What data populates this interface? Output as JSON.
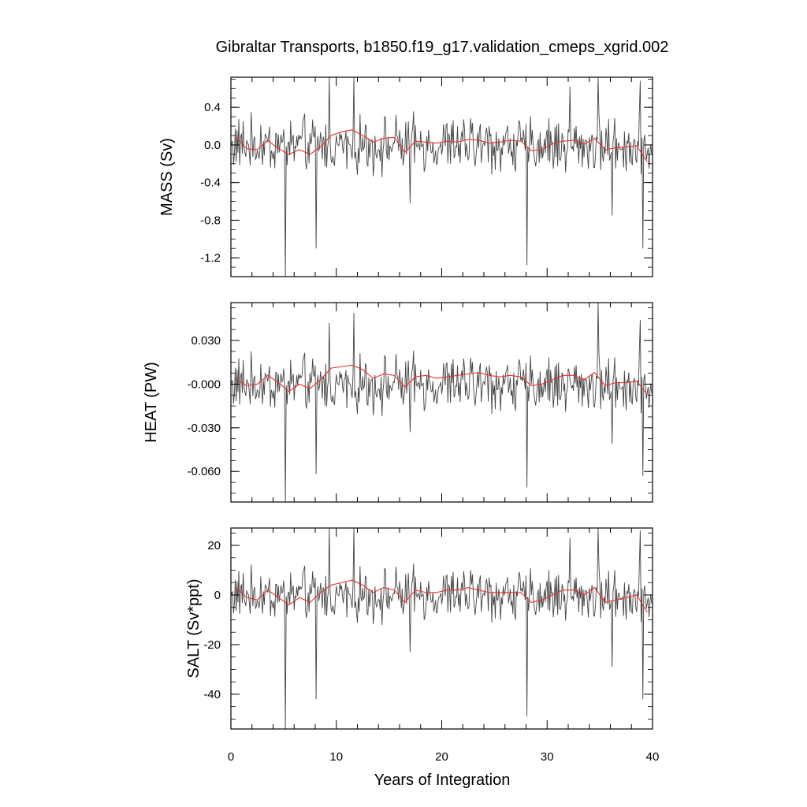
{
  "chart_data": {
    "type": "line",
    "title": "Gibraltar Transports, b1850.f19_g17.validation_cmeps_xgrid.002",
    "xlabel": "Years of Integration",
    "xlim": [
      0,
      40
    ],
    "xticks": [
      0,
      10,
      20,
      30,
      40
    ],
    "x_tick_labels": [
      "0",
      "10",
      "20",
      "30",
      "40"
    ],
    "grid": false,
    "legend": "none",
    "colors": {
      "monthly": "#444444",
      "annual_mean": "#e8312f",
      "axes": "#000000"
    },
    "panels": [
      {
        "name": "mass",
        "ylabel": "MASS (Sv)",
        "ylim": [
          -1.4,
          0.72
        ],
        "yticks": [
          0.4,
          0.0,
          -0.4,
          -0.8,
          -1.2
        ],
        "y_tick_labels": [
          "0.4",
          "0.0",
          "-0.4",
          "-0.8",
          "-1.2"
        ],
        "series": [
          {
            "kind": "monthly",
            "base": 0.0,
            "amplitude": 0.17,
            "spikes": [
              {
                "year": 5.15,
                "value": -1.4
              },
              {
                "year": 8.05,
                "value": -1.1
              },
              {
                "year": 28.1,
                "value": -1.28
              },
              {
                "year": 39.1,
                "value": -1.1
              },
              {
                "year": 9.35,
                "value": 0.72
              },
              {
                "year": 11.7,
                "value": 0.72
              },
              {
                "year": 34.8,
                "value": 0.72
              },
              {
                "year": 38.8,
                "value": 0.68
              },
              {
                "year": 32.2,
                "value": 0.62
              },
              {
                "year": 17.0,
                "value": -0.62
              },
              {
                "year": 36.2,
                "value": -0.75
              }
            ]
          },
          {
            "kind": "annual_mean",
            "x": [
              0.5,
              1.5,
              2.5,
              3.5,
              4.5,
              5.5,
              6.5,
              7.5,
              8.5,
              9.5,
              10.5,
              11.5,
              12.5,
              13.5,
              14.5,
              15.5,
              16.5,
              17.5,
              18.5,
              19.5,
              20.5,
              21.5,
              22.5,
              23.5,
              24.5,
              25.5,
              26.5,
              27.5,
              28.5,
              29.5,
              30.5,
              31.5,
              32.5,
              33.5,
              34.5,
              35.5,
              36.5,
              37.5,
              38.5,
              39.5
            ],
            "y": [
              0.08,
              -0.04,
              -0.05,
              0.05,
              -0.04,
              -0.1,
              -0.05,
              -0.1,
              -0.02,
              0.1,
              0.14,
              0.16,
              0.1,
              0.03,
              0.07,
              0.08,
              -0.08,
              0.04,
              0.03,
              0.02,
              0.04,
              0.03,
              0.06,
              0.05,
              0.02,
              0.03,
              0.05,
              0.04,
              -0.06,
              -0.05,
              0.01,
              0.04,
              0.05,
              0.01,
              0.07,
              -0.05,
              -0.03,
              -0.02,
              -0.01,
              -0.18
            ]
          }
        ]
      },
      {
        "name": "heat",
        "ylabel": "HEAT (PW)",
        "ylim": [
          -0.081,
          0.056
        ],
        "yticks": [
          0.03,
          0.0,
          -0.03,
          -0.06
        ],
        "y_tick_labels": [
          "0.030",
          "-0.000",
          "-0.030",
          "-0.060"
        ],
        "series": [
          {
            "kind": "monthly",
            "base": 0.0,
            "amplitude": 0.011,
            "spikes": [
              {
                "year": 5.15,
                "value": -0.081
              },
              {
                "year": 8.05,
                "value": -0.062
              },
              {
                "year": 28.1,
                "value": -0.071
              },
              {
                "year": 39.1,
                "value": -0.063
              },
              {
                "year": 9.35,
                "value": 0.042
              },
              {
                "year": 11.7,
                "value": 0.049
              },
              {
                "year": 34.8,
                "value": 0.056
              },
              {
                "year": 38.8,
                "value": 0.044
              },
              {
                "year": 36.2,
                "value": -0.041
              },
              {
                "year": 17.0,
                "value": -0.033
              }
            ]
          },
          {
            "kind": "annual_mean",
            "x": [
              0.5,
              1.5,
              2.5,
              3.5,
              4.5,
              5.5,
              6.5,
              7.5,
              8.5,
              9.5,
              10.5,
              11.5,
              12.5,
              13.5,
              14.5,
              15.5,
              16.5,
              17.5,
              18.5,
              19.5,
              20.5,
              21.5,
              22.5,
              23.5,
              24.5,
              25.5,
              26.5,
              27.5,
              28.5,
              29.5,
              30.5,
              31.5,
              32.5,
              33.5,
              34.5,
              35.5,
              36.5,
              37.5,
              38.5,
              39.5
            ],
            "y": [
              0.003,
              -0.001,
              0.0,
              0.006,
              0.001,
              -0.005,
              0.0,
              -0.003,
              0.003,
              0.011,
              0.012,
              0.013,
              0.01,
              0.004,
              0.007,
              0.006,
              -0.002,
              0.005,
              0.006,
              0.004,
              0.005,
              0.006,
              0.007,
              0.008,
              0.006,
              0.005,
              0.006,
              0.005,
              -0.001,
              0.0,
              0.003,
              0.006,
              0.006,
              0.003,
              0.008,
              -0.001,
              0.001,
              0.001,
              0.002,
              -0.007
            ]
          }
        ]
      },
      {
        "name": "salt",
        "ylabel": "SALT (Sv*ppt)",
        "ylim": [
          -54,
          27
        ],
        "yticks": [
          20,
          0,
          -20,
          -40
        ],
        "y_tick_labels": [
          "20",
          "0",
          "-20",
          "-40"
        ],
        "series": [
          {
            "kind": "monthly",
            "base": 0.0,
            "amplitude": 6.0,
            "spikes": [
              {
                "year": 5.15,
                "value": -54
              },
              {
                "year": 8.05,
                "value": -42
              },
              {
                "year": 28.1,
                "value": -49
              },
              {
                "year": 39.1,
                "value": -42
              },
              {
                "year": 9.35,
                "value": 27
              },
              {
                "year": 11.7,
                "value": 27
              },
              {
                "year": 34.8,
                "value": 27
              },
              {
                "year": 38.8,
                "value": 26
              },
              {
                "year": 36.2,
                "value": -29
              },
              {
                "year": 17.0,
                "value": -23
              },
              {
                "year": 32.2,
                "value": 23
              }
            ]
          },
          {
            "kind": "annual_mean",
            "x": [
              0.5,
              1.5,
              2.5,
              3.5,
              4.5,
              5.5,
              6.5,
              7.5,
              8.5,
              9.5,
              10.5,
              11.5,
              12.5,
              13.5,
              14.5,
              15.5,
              16.5,
              17.5,
              18.5,
              19.5,
              20.5,
              21.5,
              22.5,
              23.5,
              24.5,
              25.5,
              26.5,
              27.5,
              28.5,
              29.5,
              30.5,
              31.5,
              32.5,
              33.5,
              34.5,
              35.5,
              36.5,
              37.5,
              38.5,
              39.5
            ],
            "y": [
              3,
              -1,
              -2,
              2,
              -1,
              -4,
              -1,
              -3,
              1,
              4,
              5,
              6,
              4,
              1,
              3,
              2,
              -3,
              2,
              1,
              1,
              2,
              2,
              3,
              2,
              1,
              1,
              1,
              1,
              -3,
              -2,
              0,
              2,
              2,
              0,
              3,
              -3,
              -2,
              -1,
              0,
              -7
            ]
          }
        ]
      }
    ]
  }
}
